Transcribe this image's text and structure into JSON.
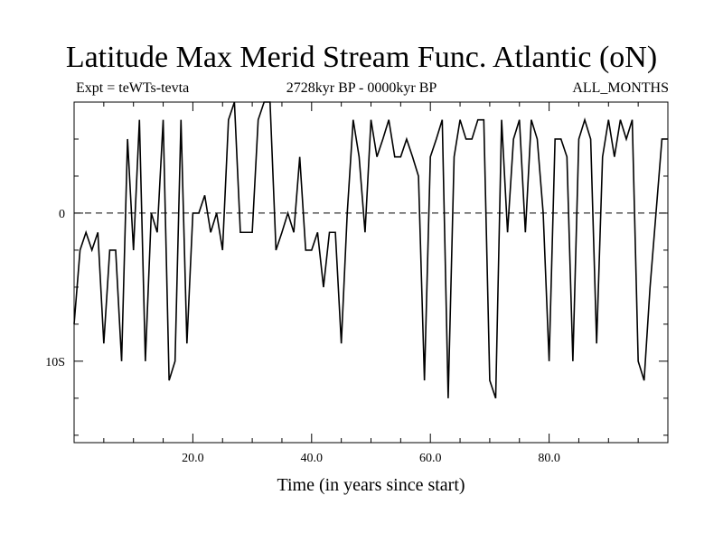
{
  "title": "Latitude Max Merid Stream Func. Atlantic (oN)",
  "subtitle_left": "Expt = teWTs-tevta",
  "subtitle_center": "2728kyr BP - 0000kyr BP",
  "subtitle_right": "ALL_MONTHS",
  "chart_data": {
    "type": "line",
    "title": "Latitude Max Merid Stream Func. Atlantic (oN)",
    "xlabel": "Time (in years since start)",
    "ylabel": "",
    "xlim": [
      0,
      100
    ],
    "ylim": [
      -15.5,
      7.5
    ],
    "x_ticks": [
      20.0,
      40.0,
      60.0,
      80.0
    ],
    "x_tick_labels": [
      "20.0",
      "40.0",
      "60.0",
      "80.0"
    ],
    "y_ticks": [
      0,
      -10
    ],
    "y_tick_labels": [
      "0",
      "10S"
    ],
    "zero_line": "dashed",
    "series": [
      {
        "x": [
          0,
          1,
          2,
          3,
          4,
          5,
          6,
          7,
          8,
          9,
          10,
          11,
          12,
          13,
          14,
          15,
          16,
          17,
          18,
          19,
          20,
          21,
          22,
          23,
          24,
          25,
          26,
          27,
          28,
          29,
          30,
          31,
          32,
          33,
          34,
          35,
          36,
          37,
          38,
          39,
          40,
          41,
          42,
          43,
          44,
          45,
          46,
          47,
          48,
          49,
          50,
          51,
          52,
          53,
          54,
          55,
          56,
          57,
          58,
          59,
          60,
          61,
          62,
          63,
          64,
          65,
          66,
          67,
          68,
          69,
          70,
          71,
          72,
          73,
          74,
          75,
          76,
          77,
          78,
          79,
          80,
          81,
          82,
          83,
          84,
          85,
          86,
          87,
          88,
          89,
          90,
          91,
          92,
          93,
          94,
          95,
          96,
          97,
          98,
          99,
          100
        ],
        "y": [
          -7.5,
          -2.5,
          -1.3,
          -2.5,
          -1.3,
          -8.8,
          -2.5,
          -2.5,
          -10,
          5,
          -2.5,
          6.3,
          -10,
          0,
          -1.3,
          6.3,
          -11.3,
          -10,
          6.3,
          -8.8,
          0,
          0,
          1.2,
          -1.3,
          0,
          -2.5,
          6.3,
          7.5,
          -1.3,
          -1.3,
          -1.3,
          6.3,
          7.5,
          7.5,
          -2.5,
          -1.3,
          0,
          -1.3,
          3.8,
          -2.5,
          -2.5,
          -1.3,
          -5,
          -1.3,
          -1.3,
          -8.8,
          0,
          6.3,
          3.8,
          -1.3,
          6.3,
          3.8,
          5,
          6.3,
          3.8,
          3.8,
          5,
          3.8,
          2.5,
          -11.3,
          3.8,
          5,
          6.3,
          -12.5,
          3.8,
          6.3,
          5,
          5,
          6.3,
          6.3,
          -11.3,
          -12.5,
          6.3,
          -1.3,
          5,
          6.3,
          -1.3,
          6.3,
          5,
          0,
          -10,
          5,
          5,
          3.8,
          -10,
          5,
          6.3,
          5,
          -8.8,
          3.8,
          6.3,
          3.8,
          6.3,
          5,
          6.3,
          -10,
          -11.3,
          -5,
          0,
          5,
          5
        ]
      }
    ]
  }
}
